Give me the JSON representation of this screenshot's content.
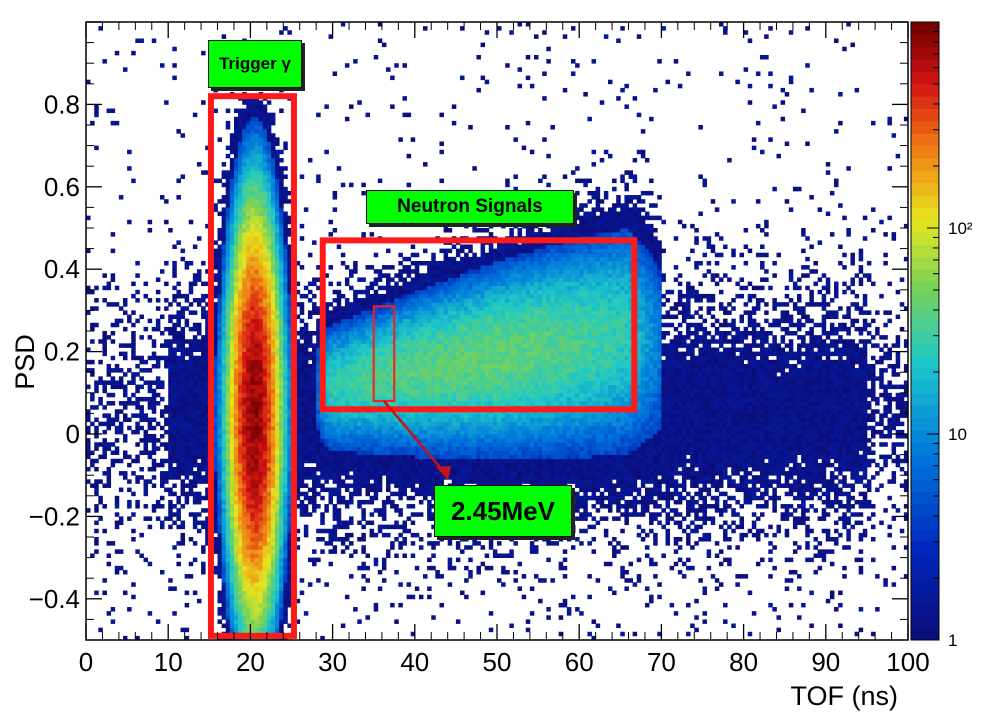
{
  "chart_data": {
    "type": "heatmap",
    "title": "",
    "xlabel": "TOF (ns)",
    "ylabel": "PSD",
    "xlim": [
      0,
      100
    ],
    "ylim": [
      -0.5,
      1.0
    ],
    "x_ticks": [
      0,
      10,
      20,
      30,
      40,
      50,
      60,
      70,
      80,
      90,
      100
    ],
    "x_tick_labels": [
      "0",
      "10",
      "20",
      "30",
      "40",
      "50",
      "60",
      "70",
      "80",
      "90",
      "100"
    ],
    "y_ticks": [
      -0.4,
      -0.2,
      0,
      0.2,
      0.4,
      0.6,
      0.8
    ],
    "y_tick_labels": [
      "−0.4",
      "−0.2",
      "0",
      "0.2",
      "0.4",
      "0.6",
      "0.8"
    ],
    "color_scale": "log",
    "colorbar_range": [
      1,
      1000
    ],
    "colorbar_ticks": [
      1,
      10,
      100
    ],
    "colorbar_tick_labels": [
      "1",
      "10",
      "10²"
    ],
    "clusters": [
      {
        "kind": "gamma-band",
        "x_center": 20.5,
        "y_center": 0.05,
        "x_sigma": 1.4,
        "y_sigma": 0.22,
        "peak": 800
      },
      {
        "kind": "neutron-band",
        "x_range": [
          30,
          66
        ],
        "y_center_start": 0.12,
        "y_center_end": 0.25,
        "peak": 40
      }
    ],
    "regions": [
      {
        "name": "trigger-gamma-region",
        "x": [
          15.2,
          25.3
        ],
        "y": [
          -0.49,
          0.82
        ],
        "label": "Trigger γ"
      },
      {
        "name": "neutron-signals-region",
        "x": [
          28.8,
          66.7
        ],
        "y": [
          0.06,
          0.47
        ],
        "label": "Neutron Signals"
      },
      {
        "name": "energy-marker-region",
        "x": [
          35.0,
          37.5
        ],
        "y": [
          0.08,
          0.31
        ],
        "label": "2.45MeV"
      }
    ],
    "colors": {
      "box": "#ff1a1a",
      "label_bg": "#00ff00",
      "arrow": "#cc1111"
    }
  }
}
